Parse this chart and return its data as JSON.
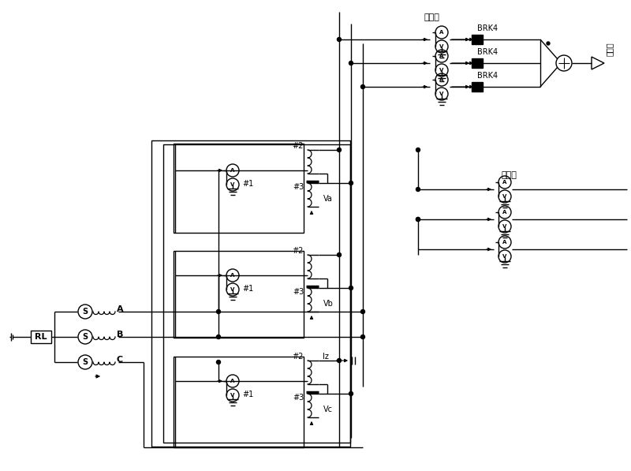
{
  "bg_color": "#ffffff",
  "fig_width": 8.0,
  "fig_height": 5.97,
  "zhongya": "中压侧",
  "diya": "低压侧",
  "brk4": "BRK4",
  "rl": "RL",
  "phases": [
    "A",
    "B",
    "C"
  ],
  "label1": "#1",
  "label2": "#2",
  "label3": "#3",
  "vlabels": [
    "Va",
    "Vb",
    "Vc"
  ],
  "iz": "Iz",
  "output_label": "正"
}
